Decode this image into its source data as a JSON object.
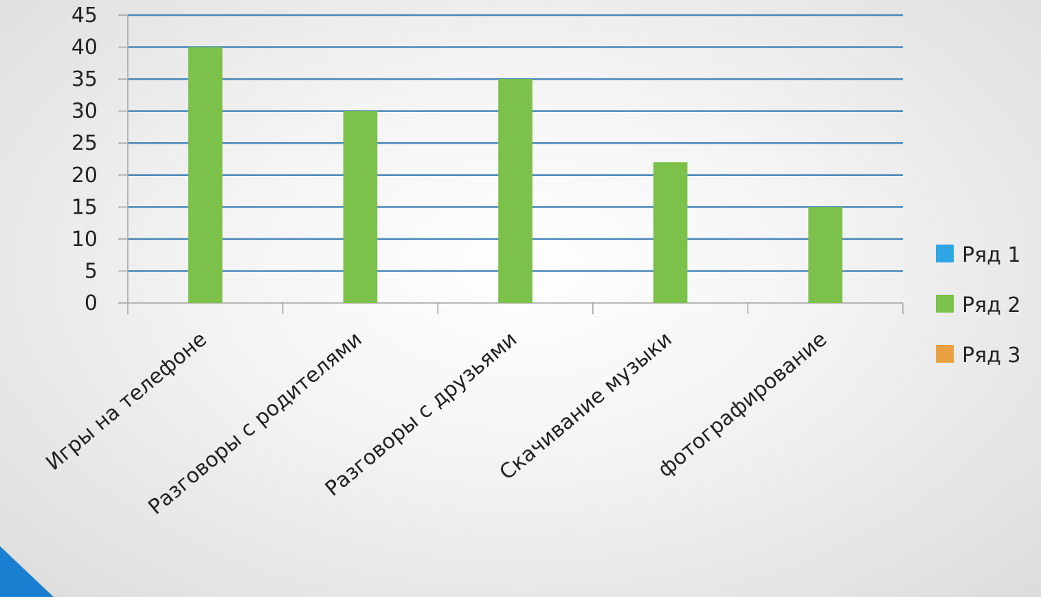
{
  "chart_data": {
    "type": "bar",
    "title": "",
    "xlabel": "",
    "ylabel": "",
    "categories": [
      "Игры на телефоне",
      "Разговоры с родителями",
      "Разговоры с друзьями",
      "Скачивание музыки",
      "фотографирование"
    ],
    "series": [
      {
        "name": "Ряд 1",
        "color": "#2ea6e4",
        "values": [
          null,
          null,
          null,
          null,
          null
        ]
      },
      {
        "name": "Ряд 2",
        "color": "#7cc14a",
        "values": [
          40,
          30,
          35,
          22,
          15
        ]
      },
      {
        "name": "Ряд 3",
        "color": "#e8a040",
        "values": [
          null,
          null,
          null,
          null,
          null
        ]
      }
    ],
    "ylim": [
      0,
      45
    ],
    "yticks": [
      0,
      5,
      10,
      15,
      20,
      25,
      30,
      35,
      40,
      45
    ],
    "grid": true,
    "legend_position": "right"
  },
  "colors": {
    "gridline": "#4a86b8",
    "axis": "#a0a0a0",
    "corner_accent": "#1a7fd0"
  }
}
